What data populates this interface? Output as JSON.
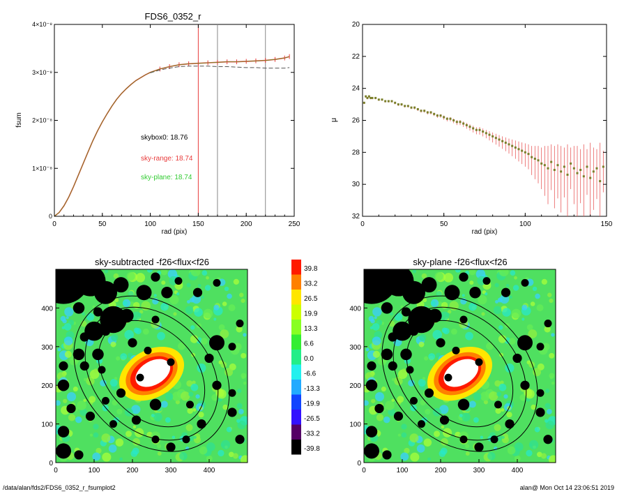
{
  "footer": {
    "path": "/data/alan/fds2/FDS6_0352_r_fsumplot2",
    "stamp": "alan@  Mon Oct 14 23:06:51 2019"
  },
  "colors": {
    "measured": "#e83a3a",
    "model_line": "#6b8e23",
    "dashed": "#555555",
    "annot_black": "#000000",
    "annot_red": "#e83a3a",
    "annot_green": "#33cc33",
    "mu_points": "#7a7f2a",
    "mu_error": "#e85a5a"
  },
  "chart_data": [
    {
      "type": "line",
      "title": "FDS6_0352_r",
      "xlabel": "rad (pix)",
      "ylabel": "fsum",
      "xlim": [
        0,
        250
      ],
      "ylim": [
        0,
        4e-08
      ],
      "x_ticks": [
        0,
        50,
        100,
        150,
        200,
        250
      ],
      "y_ticks": [
        {
          "v": 0,
          "label": "0"
        },
        {
          "v": 1e-08,
          "label": "1×10⁻⁸"
        },
        {
          "v": 2e-08,
          "label": "2×10⁻⁸"
        },
        {
          "v": 3e-08,
          "label": "3×10⁻⁸"
        },
        {
          "v": 4e-08,
          "label": "4×10⁻⁸"
        }
      ],
      "vlines": [
        {
          "x": 150,
          "color": "#e83a3a"
        },
        {
          "x": 170,
          "color": "#888888"
        },
        {
          "x": 220,
          "color": "#888888"
        }
      ],
      "annotations": [
        {
          "text": "skybox0: 18.76",
          "color": "#000000"
        },
        {
          "text": "sky-range: 18.74",
          "color": "#e83a3a"
        },
        {
          "text": "sky-plane: 18.74",
          "color": "#33cc33"
        }
      ],
      "series": [
        {
          "style": "solid",
          "x": [
            0,
            5,
            10,
            15,
            20,
            25,
            30,
            35,
            40,
            45,
            50,
            55,
            60,
            65,
            70,
            75,
            80,
            85,
            90,
            95,
            100,
            110,
            120,
            130,
            140,
            150,
            160,
            170,
            180,
            190,
            200,
            210,
            220,
            230,
            240,
            245
          ],
          "y": [
            0,
            8e-10,
            2.2e-09,
            4e-09,
            6.2e-09,
            8.6e-09,
            1.1e-08,
            1.34e-08,
            1.57e-08,
            1.78e-08,
            1.97e-08,
            2.14e-08,
            2.3e-08,
            2.44e-08,
            2.56e-08,
            2.66e-08,
            2.75e-08,
            2.83e-08,
            2.89e-08,
            2.95e-08,
            3e-08,
            3.07e-08,
            3.12e-08,
            3.16e-08,
            3.18e-08,
            3.19e-08,
            3.2e-08,
            3.21e-08,
            3.22e-08,
            3.22e-08,
            3.23e-08,
            3.24e-08,
            3.25e-08,
            3.27e-08,
            3.3e-08,
            3.33e-08
          ]
        },
        {
          "style": "dashed",
          "x": [
            100,
            110,
            120,
            130,
            140,
            150,
            160,
            170,
            180,
            190,
            200,
            210,
            220,
            230,
            240,
            245
          ],
          "y": [
            2.99e-08,
            3.05e-08,
            3.09e-08,
            3.12e-08,
            3.13e-08,
            3.13e-08,
            3.13e-08,
            3.12e-08,
            3.12e-08,
            3.11e-08,
            3.1e-08,
            3.1e-08,
            3.09e-08,
            3.09e-08,
            3.09e-08,
            3.1e-08
          ]
        }
      ]
    },
    {
      "type": "scatter",
      "title": "",
      "xlabel": "rad (pix)",
      "ylabel": "μ",
      "xlim": [
        0,
        150
      ],
      "ylim": [
        32,
        20
      ],
      "x_ticks": [
        0,
        50,
        100,
        150
      ],
      "y_ticks": [
        20,
        22,
        24,
        26,
        28,
        30,
        32
      ],
      "x": [
        1,
        2,
        3,
        4,
        5,
        6,
        8,
        10,
        12,
        14,
        16,
        18,
        20,
        22,
        24,
        26,
        28,
        30,
        32,
        34,
        36,
        38,
        40,
        42,
        44,
        46,
        48,
        50,
        52,
        54,
        56,
        58,
        60,
        62,
        64,
        66,
        68,
        70,
        72,
        74,
        76,
        78,
        80,
        82,
        84,
        86,
        88,
        90,
        92,
        94,
        96,
        98,
        100,
        102,
        104,
        106,
        108,
        110,
        112,
        114,
        116,
        118,
        120,
        122,
        124,
        126,
        128,
        130,
        132,
        134,
        136,
        138,
        140,
        142,
        144,
        146,
        148
      ],
      "y": [
        24.9,
        24.5,
        24.6,
        24.5,
        24.6,
        24.6,
        24.6,
        24.7,
        24.7,
        24.8,
        24.8,
        24.8,
        24.9,
        25.0,
        25.0,
        25.1,
        25.1,
        25.2,
        25.2,
        25.3,
        25.4,
        25.4,
        25.5,
        25.5,
        25.6,
        25.7,
        25.7,
        25.8,
        25.9,
        25.9,
        26.0,
        26.1,
        26.1,
        26.2,
        26.3,
        26.4,
        26.5,
        26.6,
        26.6,
        26.7,
        26.8,
        26.9,
        27.0,
        27.1,
        27.2,
        27.3,
        27.4,
        27.5,
        27.6,
        27.7,
        27.8,
        27.9,
        28.0,
        28.1,
        28.3,
        28.4,
        28.5,
        28.7,
        28.8,
        29.0,
        28.6,
        29.1,
        28.8,
        29.2,
        28.9,
        29.4,
        28.7,
        29.0,
        29.3,
        29.1,
        29.5,
        28.9,
        29.6,
        29.2,
        29.0,
        29.8,
        28.9
      ],
      "err": [
        0.05,
        0.05,
        0.05,
        0.05,
        0.05,
        0.05,
        0.05,
        0.05,
        0.05,
        0.05,
        0.05,
        0.05,
        0.06,
        0.06,
        0.06,
        0.06,
        0.06,
        0.06,
        0.07,
        0.07,
        0.07,
        0.07,
        0.08,
        0.08,
        0.08,
        0.09,
        0.09,
        0.1,
        0.1,
        0.1,
        0.11,
        0.12,
        0.12,
        0.13,
        0.14,
        0.15,
        0.16,
        0.17,
        0.18,
        0.19,
        0.2,
        0.22,
        0.24,
        0.26,
        0.28,
        0.3,
        0.33,
        0.36,
        0.4,
        0.44,
        0.48,
        0.52,
        0.56,
        0.6,
        0.7,
        0.8,
        0.9,
        1.0,
        1.2,
        1.4,
        1.1,
        1.5,
        1.3,
        1.6,
        1.2,
        1.9,
        1.0,
        1.4,
        1.7,
        1.3,
        2.0,
        1.1,
        2.2,
        1.5,
        1.2,
        2.4,
        1.0
      ]
    },
    {
      "type": "heatmap",
      "title": "sky-subtracted -f26<flux<f26",
      "xlim": [
        0,
        500
      ],
      "ylim": [
        0,
        500
      ],
      "x_ticks": [
        0,
        100,
        200,
        300,
        400
      ],
      "y_ticks": [
        0,
        100,
        200,
        300,
        400
      ]
    },
    {
      "type": "heatmap",
      "title": "sky-plane -f26<flux<f26",
      "xlim": [
        0,
        500
      ],
      "ylim": [
        0,
        500
      ],
      "x_ticks": [
        0,
        100,
        200,
        300,
        400
      ],
      "y_ticks": [
        0,
        100,
        200,
        300,
        400
      ]
    }
  ],
  "colorbar": {
    "labels": [
      "39.8",
      "33.2",
      "26.5",
      "19.9",
      "13.3",
      "6.6",
      "0.0",
      "-6.6",
      "-13.3",
      "-19.9",
      "-26.5",
      "-33.2",
      "-39.8"
    ],
    "colors": [
      "#ff1a00",
      "#ff8000",
      "#ffe600",
      "#ccff00",
      "#88ff22",
      "#33ee33",
      "#22ee88",
      "#22f0ee",
      "#22aaff",
      "#1144ff",
      "#3311ff",
      "#550066",
      "#000000"
    ]
  },
  "image_masks": {
    "blobs": [
      [
        20,
        480,
        70
      ],
      [
        90,
        470,
        40
      ],
      [
        130,
        440,
        30
      ],
      [
        170,
        460,
        20
      ],
      [
        260,
        480,
        12
      ],
      [
        230,
        440,
        20
      ],
      [
        290,
        440,
        15
      ],
      [
        320,
        470,
        10
      ],
      [
        370,
        440,
        12
      ],
      [
        420,
        465,
        10
      ],
      [
        60,
        400,
        15
      ],
      [
        110,
        390,
        12
      ],
      [
        150,
        370,
        35
      ],
      [
        185,
        380,
        18
      ],
      [
        100,
        340,
        25
      ],
      [
        75,
        325,
        12
      ],
      [
        130,
        340,
        12
      ],
      [
        200,
        310,
        12
      ],
      [
        240,
        290,
        10
      ],
      [
        60,
        280,
        15
      ],
      [
        110,
        280,
        15
      ],
      [
        420,
        310,
        20
      ],
      [
        460,
        300,
        10
      ],
      [
        400,
        270,
        12
      ],
      [
        20,
        250,
        12
      ],
      [
        75,
        250,
        12
      ],
      [
        120,
        240,
        10
      ],
      [
        20,
        200,
        15
      ],
      [
        40,
        140,
        12
      ],
      [
        20,
        80,
        15
      ],
      [
        20,
        30,
        20
      ],
      [
        60,
        20,
        12
      ],
      [
        150,
        100,
        10
      ],
      [
        210,
        110,
        12
      ],
      [
        260,
        60,
        10
      ],
      [
        300,
        40,
        12
      ],
      [
        340,
        60,
        10
      ],
      [
        380,
        100,
        12
      ],
      [
        460,
        130,
        12
      ],
      [
        480,
        60,
        12
      ],
      [
        420,
        200,
        12
      ],
      [
        460,
        180,
        10
      ],
      [
        350,
        150,
        10
      ],
      [
        300,
        260,
        10
      ],
      [
        260,
        150,
        15
      ],
      [
        220,
        220,
        10
      ],
      [
        170,
        180,
        12
      ],
      [
        130,
        160,
        10
      ],
      [
        90,
        120,
        12
      ],
      [
        480,
        360,
        10
      ],
      [
        260,
        370,
        10
      ]
    ]
  }
}
